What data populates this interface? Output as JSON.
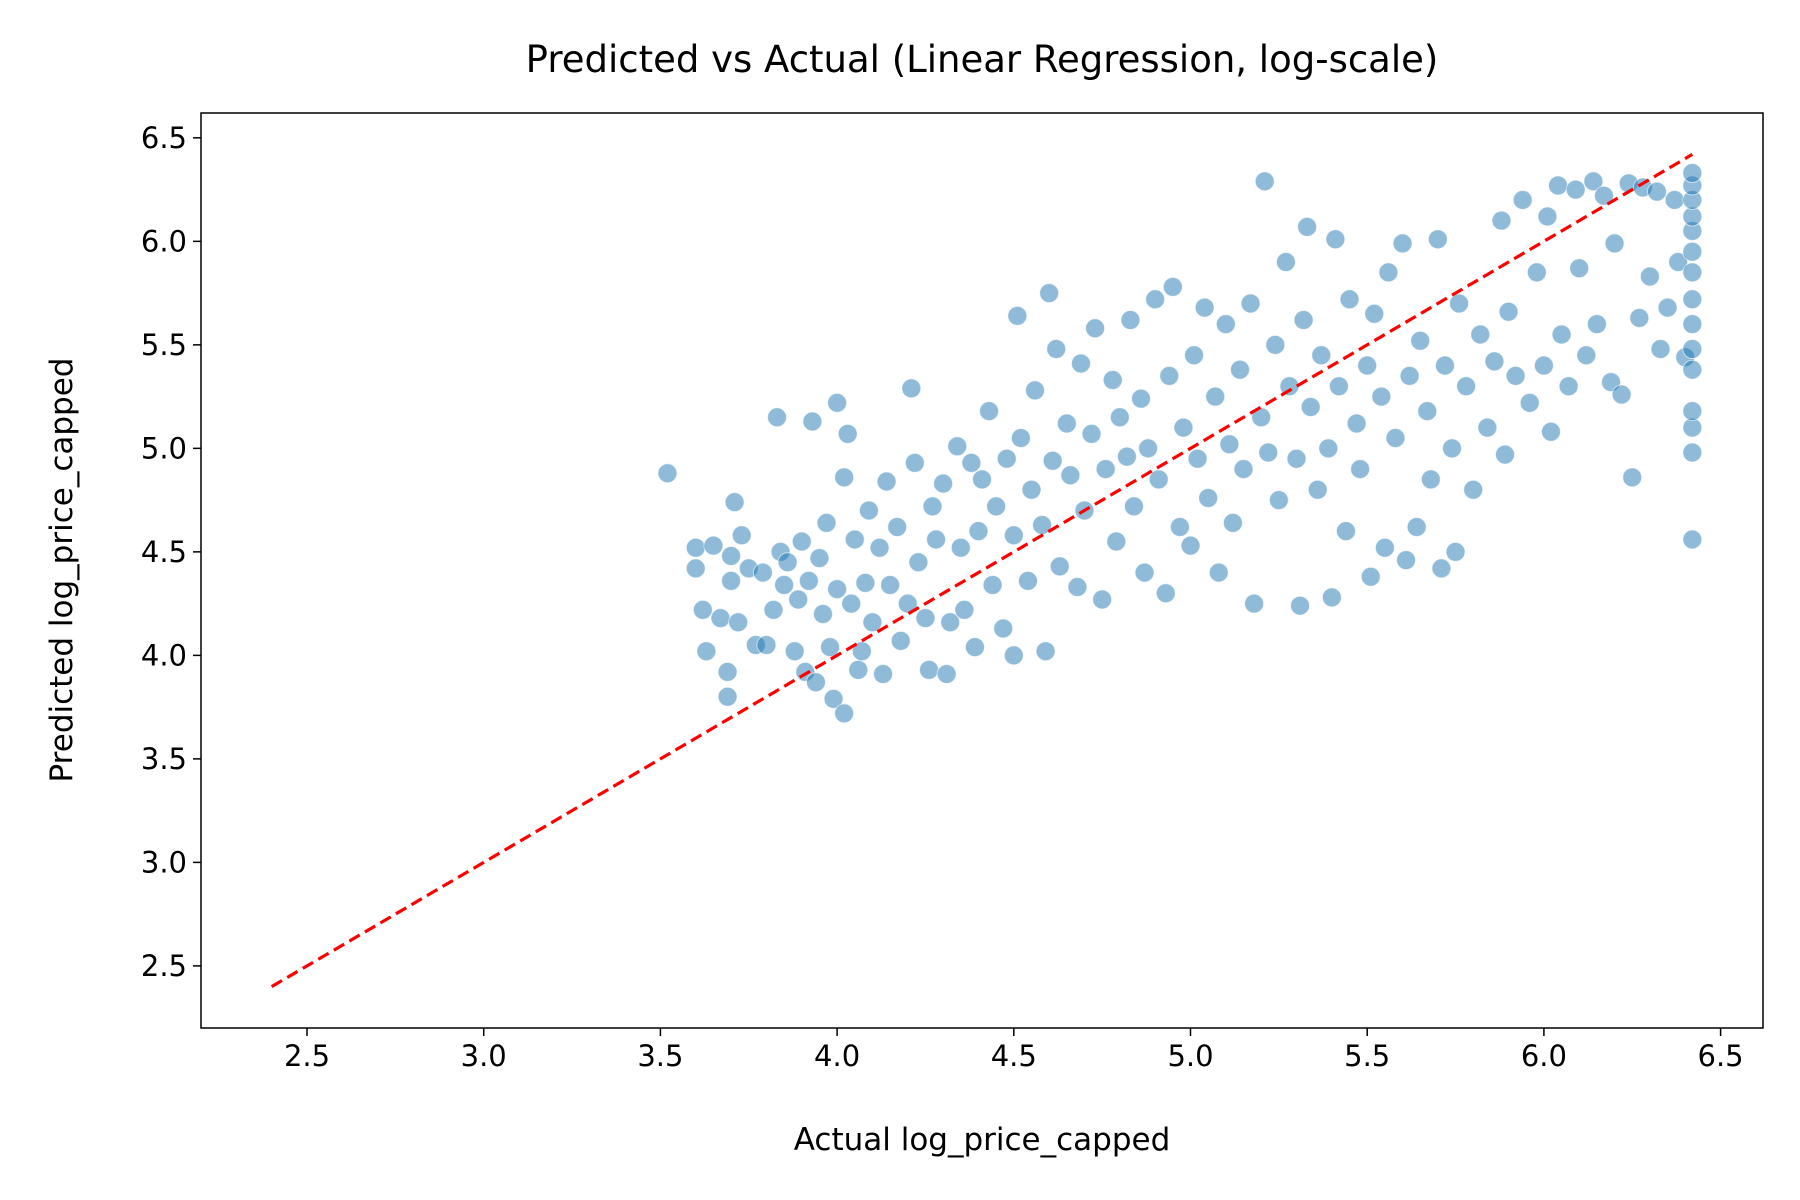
{
  "chart_data": {
    "type": "scatter",
    "title": "Predicted vs Actual (Linear Regression, log-scale)",
    "xlabel": "Actual log_price_capped",
    "ylabel": "Predicted log_price_capped",
    "color": "#1f77b4",
    "xlim": [
      2.2,
      6.62
    ],
    "ylim": [
      2.2,
      6.62
    ],
    "xticks": [
      2.5,
      {
        "value": 3,
        "label": "3.0"
      },
      3.5,
      {
        "value": 4,
        "label": "4.0"
      },
      4.5,
      {
        "value": 5,
        "label": "5.0"
      },
      5.5,
      {
        "value": 6,
        "label": "6.0"
      },
      6.5
    ],
    "yticks": [
      2.5,
      {
        "value": 3,
        "label": "3.0"
      },
      3.5,
      {
        "value": 4,
        "label": "4.0"
      },
      4.5,
      {
        "value": 5,
        "label": "5.0"
      },
      5.5,
      {
        "value": 6,
        "label": "6.0"
      },
      6.5
    ],
    "x": [
      3.52,
      3.6,
      3.6,
      3.62,
      3.63,
      3.65,
      3.67,
      3.69,
      3.69,
      3.7,
      3.7,
      3.71,
      3.72,
      3.73,
      3.75,
      3.77,
      3.79,
      3.8,
      3.82,
      3.83,
      3.84,
      3.85,
      3.86,
      3.88,
      3.89,
      3.9,
      3.91,
      3.92,
      3.93,
      3.94,
      3.95,
      3.96,
      3.97,
      3.98,
      3.99,
      4.0,
      4.0,
      4.02,
      4.02,
      4.03,
      4.04,
      4.05,
      4.06,
      4.07,
      4.08,
      4.09,
      4.1,
      4.12,
      4.13,
      4.14,
      4.15,
      4.17,
      4.18,
      4.2,
      4.21,
      4.22,
      4.23,
      4.25,
      4.26,
      4.27,
      4.28,
      4.3,
      4.31,
      4.32,
      4.34,
      4.35,
      4.36,
      4.38,
      4.39,
      4.4,
      4.41,
      4.43,
      4.44,
      4.45,
      4.47,
      4.48,
      4.5,
      4.5,
      4.51,
      4.52,
      4.54,
      4.55,
      4.56,
      4.58,
      4.59,
      4.6,
      4.61,
      4.62,
      4.63,
      4.65,
      4.66,
      4.68,
      4.69,
      4.7,
      4.72,
      4.73,
      4.75,
      4.76,
      4.78,
      4.79,
      4.8,
      4.82,
      4.83,
      4.84,
      4.86,
      4.87,
      4.88,
      4.9,
      4.91,
      4.93,
      4.94,
      4.95,
      4.97,
      4.98,
      5.0,
      5.01,
      5.02,
      5.04,
      5.05,
      5.07,
      5.08,
      5.1,
      5.11,
      5.12,
      5.14,
      5.15,
      5.17,
      5.18,
      5.2,
      5.21,
      5.22,
      5.24,
      5.25,
      5.27,
      5.28,
      5.3,
      5.31,
      5.32,
      5.33,
      5.34,
      5.36,
      5.37,
      5.39,
      5.4,
      5.41,
      5.42,
      5.44,
      5.45,
      5.47,
      5.48,
      5.5,
      5.51,
      5.52,
      5.54,
      5.55,
      5.56,
      5.58,
      5.6,
      5.61,
      5.62,
      5.64,
      5.65,
      5.67,
      5.68,
      5.7,
      5.71,
      5.72,
      5.74,
      5.75,
      5.76,
      5.78,
      5.8,
      5.82,
      5.84,
      5.86,
      5.88,
      5.89,
      5.9,
      5.92,
      5.94,
      5.96,
      5.98,
      6.0,
      6.01,
      6.02,
      6.04,
      6.05,
      6.07,
      6.09,
      6.1,
      6.12,
      6.14,
      6.15,
      6.17,
      6.19,
      6.2,
      6.22,
      6.24,
      6.25,
      6.27,
      6.28,
      6.3,
      6.32,
      6.33,
      6.35,
      6.37,
      6.38,
      6.4,
      6.42,
      6.42,
      6.42,
      6.42,
      6.42,
      6.42,
      6.42,
      6.42,
      6.42,
      6.42,
      6.42,
      6.42,
      6.42,
      6.42,
      6.42
    ],
    "y": [
      4.88,
      4.52,
      4.42,
      4.22,
      4.02,
      4.53,
      4.18,
      3.92,
      3.8,
      4.48,
      4.36,
      4.74,
      4.16,
      4.58,
      4.42,
      4.05,
      4.4,
      4.05,
      4.22,
      5.15,
      4.5,
      4.34,
      4.45,
      4.02,
      4.27,
      4.55,
      3.92,
      4.36,
      5.13,
      3.87,
      4.47,
      4.2,
      4.64,
      4.04,
      3.79,
      4.32,
      5.22,
      4.86,
      3.72,
      5.07,
      4.25,
      4.56,
      3.93,
      4.02,
      4.35,
      4.7,
      4.16,
      4.52,
      3.91,
      4.84,
      4.34,
      4.62,
      4.07,
      4.25,
      5.29,
      4.93,
      4.45,
      4.18,
      3.93,
      4.72,
      4.56,
      4.83,
      3.91,
      4.16,
      5.01,
      4.52,
      4.22,
      4.93,
      4.04,
      4.6,
      4.85,
      5.18,
      4.34,
      4.72,
      4.13,
      4.95,
      4.0,
      4.58,
      5.64,
      5.05,
      4.36,
      4.8,
      5.28,
      4.63,
      4.02,
      5.75,
      4.94,
      5.48,
      4.43,
      5.12,
      4.87,
      4.33,
      5.41,
      4.7,
      5.07,
      5.58,
      4.27,
      4.9,
      5.33,
      4.55,
      5.15,
      4.96,
      5.62,
      4.72,
      5.24,
      4.4,
      5.0,
      5.72,
      4.85,
      4.3,
      5.35,
      5.78,
      4.62,
      5.1,
      4.53,
      5.45,
      4.95,
      5.68,
      4.76,
      5.25,
      4.4,
      5.6,
      5.02,
      4.64,
      5.38,
      4.9,
      5.7,
      4.25,
      5.15,
      6.29,
      4.98,
      5.5,
      4.75,
      5.9,
      5.3,
      4.95,
      4.24,
      5.62,
      6.07,
      5.2,
      4.8,
      5.45,
      5.0,
      4.28,
      6.01,
      5.3,
      4.6,
      5.72,
      5.12,
      4.9,
      5.4,
      4.38,
      5.65,
      5.25,
      4.52,
      5.85,
      5.05,
      5.99,
      4.46,
      5.35,
      4.62,
      5.52,
      5.18,
      4.85,
      6.01,
      4.42,
      5.4,
      5.0,
      4.5,
      5.7,
      5.3,
      4.8,
      5.55,
      5.1,
      5.42,
      6.1,
      4.97,
      5.66,
      5.35,
      6.2,
      5.22,
      5.85,
      5.4,
      6.12,
      5.08,
      6.27,
      5.55,
      5.3,
      6.25,
      5.87,
      5.45,
      6.29,
      5.6,
      6.22,
      5.32,
      5.99,
      5.26,
      6.28,
      4.86,
      5.63,
      6.26,
      5.83,
      6.24,
      5.48,
      5.68,
      6.2,
      5.9,
      5.44,
      4.56,
      4.98,
      5.1,
      5.18,
      5.38,
      5.48,
      5.6,
      5.72,
      5.85,
      5.95,
      6.05,
      6.12,
      6.2,
      6.27,
      6.33
    ],
    "reference_line": {
      "x": [
        2.4,
        6.42
      ],
      "y": [
        2.4,
        6.42
      ],
      "color": "#ff0000",
      "style": "dashed"
    }
  }
}
